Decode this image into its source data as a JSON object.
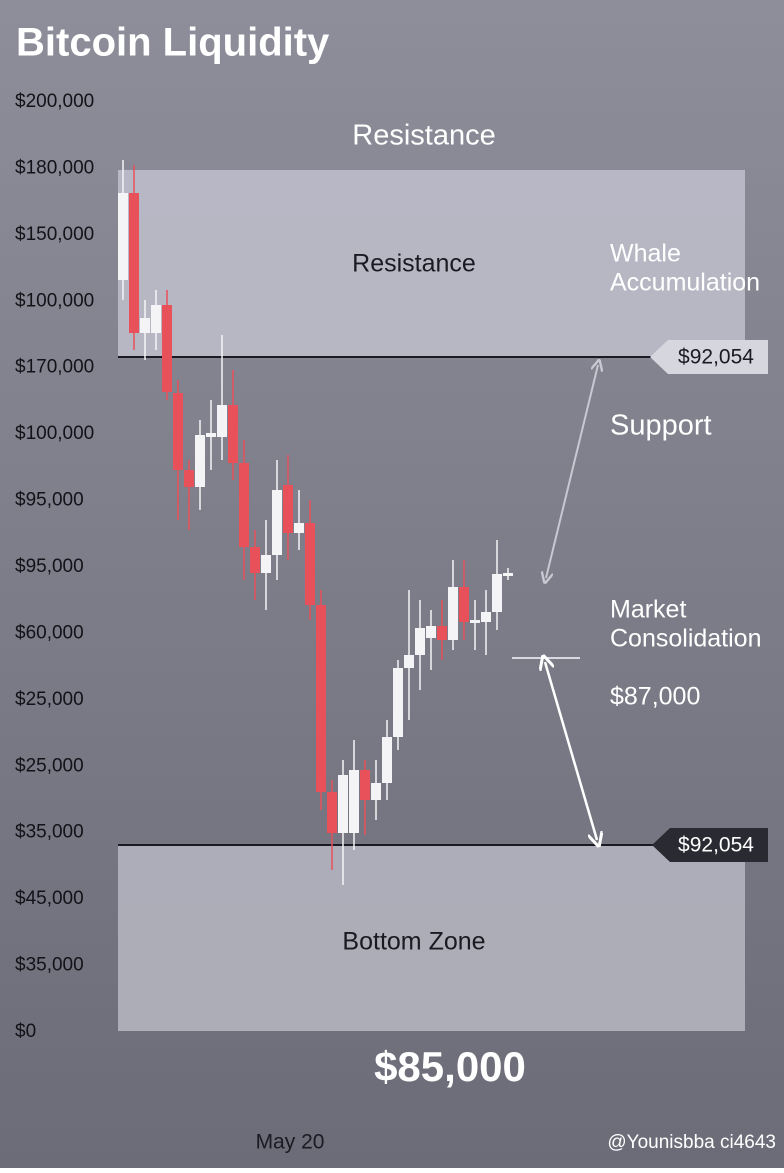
{
  "chart_data": {
    "type": "candlestick",
    "title": "Bitcoin Liquidity",
    "y_axis_labels": [
      "$200,000",
      "$180,000",
      "$150,000",
      "$100,000",
      "$170,000",
      "$100,000",
      "$95,000",
      "$95,000",
      "$60,000",
      "$25,000",
      "$25,000",
      "$35,000",
      "$45,000",
      "$35,000",
      "$0"
    ],
    "x_axis_labels": [
      "May 20"
    ],
    "annotations": {
      "resistance_header": "Resistance",
      "resistance_zone": "Resistance",
      "whale": [
        "Whale",
        "Accumulation"
      ],
      "upper_tag": "$92,054",
      "support": "Support",
      "consolidation": [
        "Market",
        "Consolidation"
      ],
      "consolidation_price": "$87,000",
      "lower_tag": "$92,054",
      "bottom_zone": "Bottom Zone",
      "bottom_price": "$85,000"
    },
    "up_color": "#f4f4f6",
    "down_color": "#e8505a"
  },
  "watermark": "@Younisbba ci4643"
}
